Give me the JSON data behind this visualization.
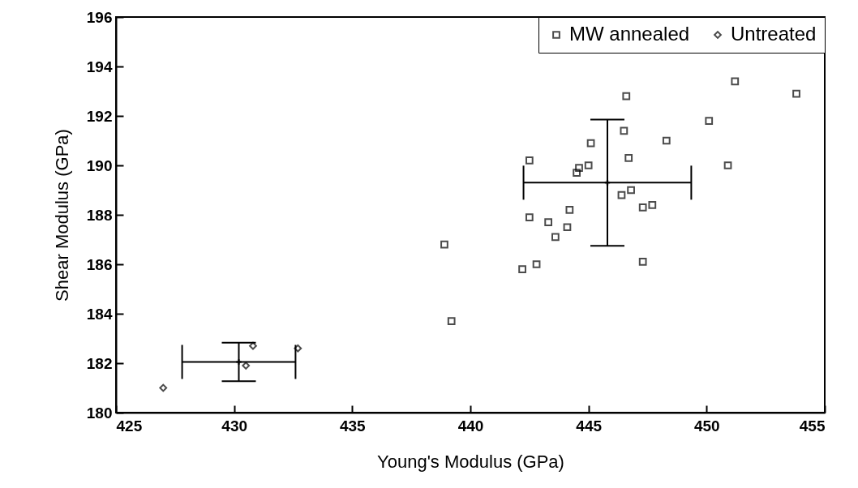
{
  "chart_data": {
    "type": "scatter",
    "xlabel": "Young's Modulus (GPa)",
    "ylabel": "Shear Modulus (GPa)",
    "xlim": [
      425,
      455
    ],
    "xticks": [
      425,
      430,
      435,
      440,
      445,
      450,
      455
    ],
    "ylim": [
      180,
      196
    ],
    "yticks": [
      180,
      182,
      184,
      186,
      188,
      190,
      192,
      194,
      196
    ],
    "grid": false,
    "legend": "top right",
    "series": [
      {
        "name": "MW annealed",
        "color": "#000000",
        "marker": "square",
        "x": [
          451.2,
          453.8,
          446.6,
          450.1,
          446.5,
          445.1,
          448.3,
          446.7,
          442.5,
          445.0,
          444.6,
          444.5,
          450.9,
          446.8,
          446.4,
          447.3,
          447.7,
          444.2,
          442.5,
          443.3,
          444.1,
          443.6,
          438.9,
          447.3,
          442.8,
          442.2,
          439.2
        ],
        "values": [
          193.4,
          192.9,
          192.8,
          191.8,
          191.4,
          190.9,
          191.0,
          190.3,
          190.2,
          190.0,
          189.9,
          189.7,
          190.0,
          189.0,
          188.8,
          188.3,
          188.4,
          188.2,
          187.9,
          187.7,
          187.5,
          187.1,
          186.8,
          186.1,
          186.0,
          185.8,
          183.7
        ]
      },
      {
        "name": "Untreated",
        "color": "#000000",
        "marker": "diamond",
        "x": [
          427.0,
          430.8,
          430.5,
          432.7
        ],
        "values": [
          181.0,
          182.7,
          181.9,
          182.6
        ]
      },
      {
        "color": "#000000",
        "marker": "cross",
        "x": [
          445.8
        ],
        "values": [
          189.3
        ],
        "errors": [
          2.55
        ],
        "xerrors": [
          3.55
        ]
      },
      {
        "color": "#000000",
        "marker": "cross",
        "x": [
          430.2
        ],
        "values": [
          182.05
        ],
        "errors": [
          0.78
        ],
        "xerrors": [
          2.4
        ]
      }
    ]
  }
}
